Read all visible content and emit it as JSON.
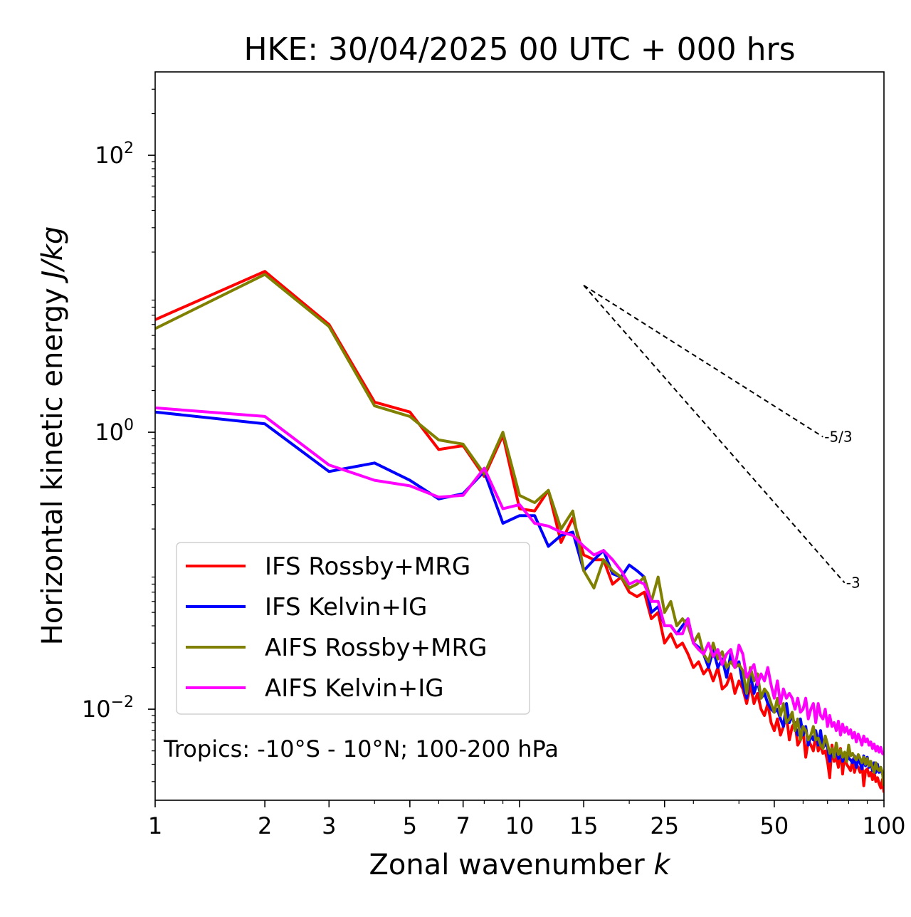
{
  "chart_data": {
    "type": "line",
    "title": "HKE: 30/04/2025 00 UTC + 000 hrs",
    "xlabel": "Zonal wavenumber k",
    "ylabel": "Horizontal kinetic energy J/kg",
    "xscale": "log",
    "yscale": "log",
    "xlim": [
      1,
      100
    ],
    "ylim": [
      0.0022,
      400
    ],
    "xticks": [
      1,
      2,
      3,
      5,
      7,
      10,
      15,
      25,
      50,
      100
    ],
    "xtick_labels": [
      "1",
      "2",
      "3",
      "5",
      "7",
      "10",
      "15",
      "25",
      "50",
      "100"
    ],
    "yticks": [
      0.01,
      1,
      100
    ],
    "ytick_labels": [
      {
        "base": "10",
        "exp": "−2"
      },
      {
        "base": "10",
        "exp": "0"
      },
      {
        "base": "10",
        "exp": "2"
      }
    ],
    "grid": false,
    "legend_position": "lower-left",
    "annotation": "Tropics: -10°S - 10°N; 100-200 hPa",
    "reference_lines": [
      {
        "label": "-5/3",
        "slope": -1.666667,
        "x_start": 15,
        "x_end": 68,
        "y_start": 11.5
      },
      {
        "label": "-3",
        "slope": -3,
        "x_start": 15,
        "x_end": 78,
        "y_start": 11.5
      }
    ],
    "x": [
      1,
      2,
      3,
      4,
      5,
      6,
      7,
      8,
      9,
      10,
      11,
      12,
      13,
      14,
      15,
      16,
      17,
      18,
      19,
      20,
      21,
      22,
      23,
      24,
      25,
      26,
      27,
      28,
      29,
      30,
      31,
      32,
      33,
      34,
      35,
      36,
      37,
      38,
      39,
      40,
      41,
      42,
      43,
      44,
      45,
      46,
      47,
      48,
      49,
      50,
      51,
      52,
      53,
      54,
      55,
      56,
      57,
      58,
      59,
      60,
      61,
      62,
      63,
      64,
      65,
      66,
      67,
      68,
      69,
      70,
      71,
      72,
      73,
      74,
      75,
      76,
      77,
      78,
      79,
      80,
      81,
      82,
      83,
      84,
      85,
      86,
      87,
      88,
      89,
      90,
      91,
      92,
      93,
      94,
      95,
      96,
      97,
      98,
      99,
      100
    ],
    "series": [
      {
        "name": "IFS Rossby+MRG",
        "color": "#ff0000",
        "values": [
          6.5,
          14.5,
          6.0,
          1.65,
          1.4,
          0.75,
          0.8,
          0.48,
          0.95,
          0.28,
          0.27,
          0.38,
          0.16,
          0.24,
          0.13,
          0.12,
          0.12,
          0.08,
          0.09,
          0.07,
          0.065,
          0.07,
          0.045,
          0.05,
          0.03,
          0.035,
          0.028,
          0.03,
          0.025,
          0.02,
          0.022,
          0.018,
          0.02,
          0.016,
          0.02,
          0.014,
          0.015,
          0.018,
          0.013,
          0.016,
          0.014,
          0.011,
          0.015,
          0.011,
          0.013,
          0.01,
          0.009,
          0.011,
          0.008,
          0.007,
          0.0085,
          0.0065,
          0.0075,
          0.009,
          0.006,
          0.0075,
          0.008,
          0.0055,
          0.006,
          0.007,
          0.0045,
          0.006,
          0.0055,
          0.005,
          0.0065,
          0.005,
          0.0055,
          0.0048,
          0.005,
          0.0042,
          0.0032,
          0.0055,
          0.0042,
          0.0045,
          0.0038,
          0.0052,
          0.0034,
          0.0048,
          0.004,
          0.0038,
          0.0036,
          0.0043,
          0.0035,
          0.004,
          0.0038,
          0.0035,
          0.0042,
          0.0028,
          0.0036,
          0.0037,
          0.0033,
          0.0035,
          0.0031,
          0.0035,
          0.003,
          0.0032,
          0.0029,
          0.0027,
          0.0031,
          0.0025
        ]
      },
      {
        "name": "IFS Kelvin+IG",
        "color": "#0000ff",
        "values": [
          1.4,
          1.15,
          0.52,
          0.6,
          0.45,
          0.33,
          0.36,
          0.52,
          0.22,
          0.25,
          0.25,
          0.15,
          0.18,
          0.19,
          0.1,
          0.12,
          0.14,
          0.095,
          0.09,
          0.11,
          0.1,
          0.09,
          0.05,
          0.055,
          0.04,
          0.04,
          0.035,
          0.04,
          0.045,
          0.03,
          0.028,
          0.025,
          0.02,
          0.027,
          0.02,
          0.023,
          0.017,
          0.025,
          0.02,
          0.022,
          0.015,
          0.012,
          0.018,
          0.013,
          0.016,
          0.012,
          0.013,
          0.011,
          0.01,
          0.0095,
          0.01,
          0.0085,
          0.0075,
          0.011,
          0.008,
          0.009,
          0.0075,
          0.0065,
          0.0085,
          0.0065,
          0.0075,
          0.0055,
          0.0065,
          0.006,
          0.007,
          0.0055,
          0.007,
          0.0052,
          0.0057,
          0.0053,
          0.0042,
          0.0052,
          0.0045,
          0.0051,
          0.0044,
          0.0049,
          0.0042,
          0.0047,
          0.0048,
          0.0044,
          0.0043,
          0.0041,
          0.0046,
          0.0038,
          0.0044,
          0.0041,
          0.0037,
          0.0046,
          0.0039,
          0.0045,
          0.0038,
          0.0042,
          0.0036,
          0.0041,
          0.0035,
          0.004,
          0.0035,
          0.0038,
          0.0034,
          0.0033
        ]
      },
      {
        "name": "AIFS Rossby+MRG",
        "color": "#808000",
        "values": [
          5.6,
          13.8,
          5.8,
          1.55,
          1.3,
          0.88,
          0.82,
          0.5,
          1.0,
          0.35,
          0.31,
          0.38,
          0.2,
          0.27,
          0.1,
          0.075,
          0.12,
          0.1,
          0.09,
          0.075,
          0.08,
          0.09,
          0.06,
          0.09,
          0.05,
          0.06,
          0.04,
          0.045,
          0.04,
          0.03,
          0.035,
          0.025,
          0.022,
          0.03,
          0.023,
          0.026,
          0.02,
          0.022,
          0.02,
          0.021,
          0.019,
          0.013,
          0.02,
          0.016,
          0.018,
          0.012,
          0.014,
          0.013,
          0.011,
          0.0095,
          0.012,
          0.009,
          0.011,
          0.008,
          0.0085,
          0.0095,
          0.007,
          0.0085,
          0.006,
          0.0075,
          0.007,
          0.006,
          0.0065,
          0.0075,
          0.006,
          0.0062,
          0.0055,
          0.0052,
          0.0064,
          0.0056,
          0.0048,
          0.0052,
          0.0045,
          0.0057,
          0.0047,
          0.0051,
          0.0045,
          0.0049,
          0.0042,
          0.0055,
          0.0046,
          0.0048,
          0.0045,
          0.0043,
          0.0047,
          0.0044,
          0.0041,
          0.0045,
          0.004,
          0.0044,
          0.0039,
          0.0042,
          0.0038,
          0.0035,
          0.0041,
          0.0037,
          0.0036,
          0.0038,
          0.0035,
          0.0028
        ]
      },
      {
        "name": "AIFS Kelvin+IG",
        "color": "#ff00ff",
        "values": [
          1.5,
          1.3,
          0.58,
          0.45,
          0.41,
          0.34,
          0.35,
          0.55,
          0.28,
          0.3,
          0.22,
          0.21,
          0.19,
          0.18,
          0.15,
          0.13,
          0.14,
          0.12,
          0.1,
          0.08,
          0.085,
          0.08,
          0.06,
          0.06,
          0.04,
          0.04,
          0.035,
          0.035,
          0.045,
          0.03,
          0.027,
          0.025,
          0.03,
          0.024,
          0.027,
          0.021,
          0.025,
          0.027,
          0.02,
          0.029,
          0.025,
          0.017,
          0.019,
          0.021,
          0.015,
          0.018,
          0.016,
          0.02,
          0.015,
          0.012,
          0.016,
          0.011,
          0.014,
          0.012,
          0.013,
          0.012,
          0.01,
          0.012,
          0.0095,
          0.01,
          0.012,
          0.0085,
          0.01,
          0.011,
          0.008,
          0.011,
          0.009,
          0.0085,
          0.01,
          0.0075,
          0.009,
          0.0075,
          0.008,
          0.007,
          0.0082,
          0.0065,
          0.0078,
          0.0068,
          0.0074,
          0.0066,
          0.0071,
          0.0062,
          0.0068,
          0.0058,
          0.0066,
          0.0061,
          0.0055,
          0.0064,
          0.0058,
          0.0061,
          0.0055,
          0.0058,
          0.0052,
          0.0056,
          0.005,
          0.0054,
          0.0049,
          0.0053,
          0.0048,
          0.0047
        ]
      }
    ]
  }
}
